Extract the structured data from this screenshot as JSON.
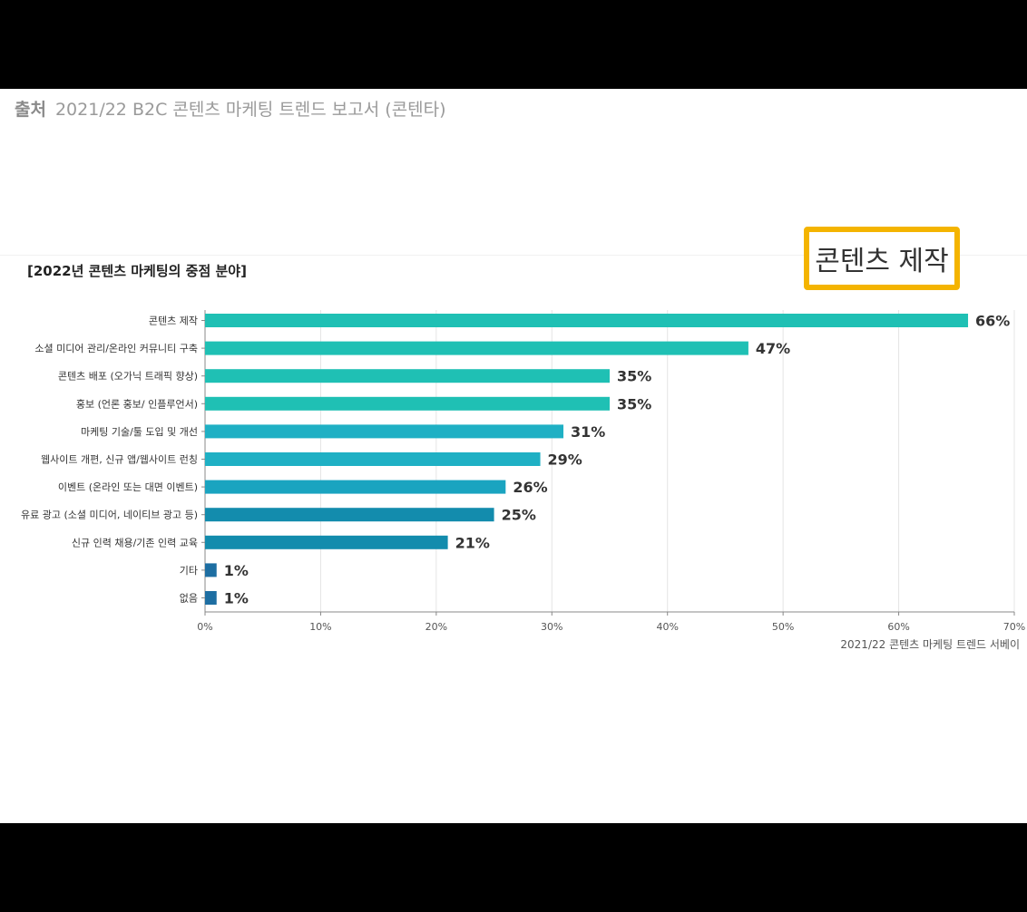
{
  "source": {
    "lead": "출처",
    "text": "2021/22 B2C 콘텐츠 마케팅 트렌드 보고서 (콘텐타)"
  },
  "callout": {
    "text": "콘텐츠 제작",
    "border_color": "#f4b400"
  },
  "chart_data": {
    "type": "bar",
    "orientation": "horizontal",
    "title": "[2022년 콘텐츠 마케팅의 중점 분야]",
    "source_note": "2021/22 콘텐츠 마케팅 트렌드 서베이",
    "categories": [
      "콘텐츠 제작",
      "소셜 미디어 관리/온라인 커뮤니티 구축",
      "콘텐츠 배포 (오가닉 트래픽 향상)",
      "홍보 (언론 홍보/ 인플루언서)",
      "마케팅 기술/툴 도입 및 개선",
      "웹사이트 개편, 신규 앱/웹사이트 런칭",
      "이벤트 (온라인 또는 대면 이벤트)",
      "유료 광고 (소셜 미디어, 네이티브 광고 등)",
      "신규 인력 채용/기존 인력 교육",
      "기타",
      "없음"
    ],
    "values": [
      66,
      47,
      35,
      35,
      31,
      29,
      26,
      25,
      21,
      1,
      1
    ],
    "value_labels": [
      "66%",
      "47%",
      "35%",
      "35%",
      "31%",
      "29%",
      "26%",
      "25%",
      "21%",
      "1%",
      "1%"
    ],
    "bar_colors": [
      "#1fc0b4",
      "#1fc0b4",
      "#1fc0b4",
      "#1fc0b4",
      "#1fb0c4",
      "#1fb0c4",
      "#1aa4c0",
      "#138cad",
      "#138cad",
      "#1d6ea2",
      "#1d6ea2"
    ],
    "xlim": [
      0,
      70
    ],
    "xticks": [
      0,
      10,
      20,
      30,
      40,
      50,
      60,
      70
    ],
    "xtick_labels": [
      "0%",
      "10%",
      "20%",
      "30%",
      "40%",
      "50%",
      "60%",
      "70%"
    ],
    "grid": true,
    "legend": "none"
  }
}
